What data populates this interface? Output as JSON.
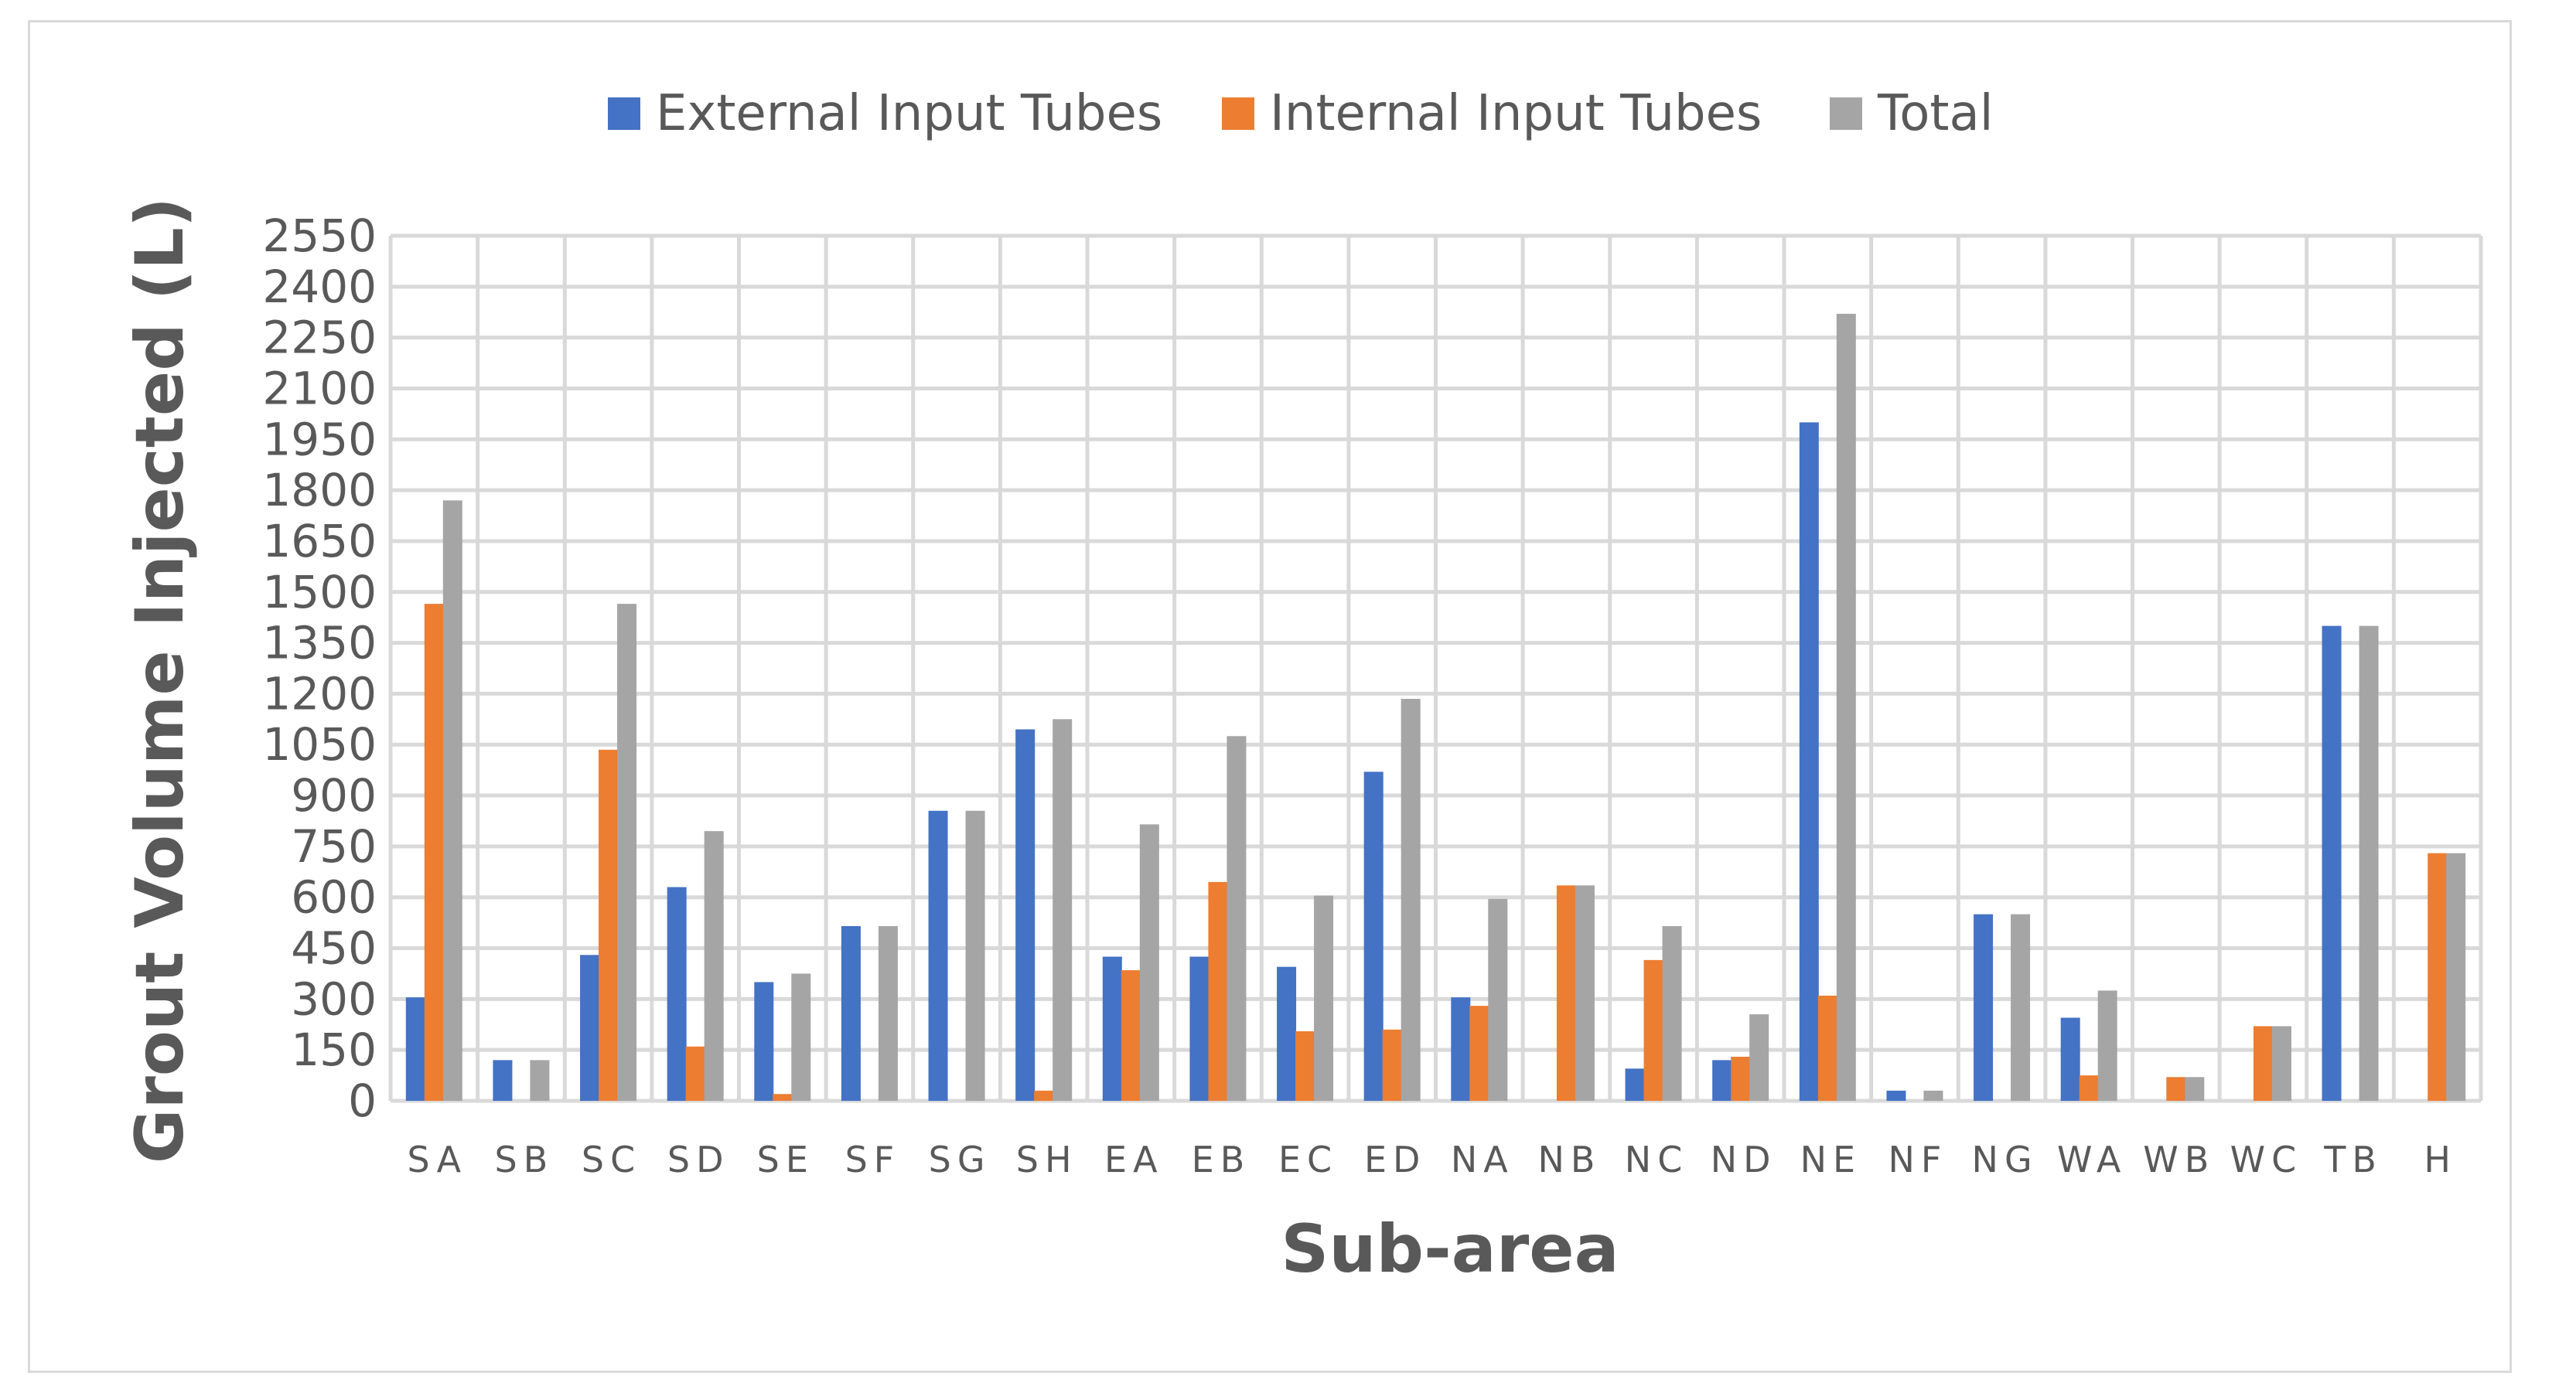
{
  "chart_data": {
    "type": "bar",
    "title": "",
    "xlabel": "Sub-area",
    "ylabel": "Grout Volume Injected (L)",
    "ylim": [
      0,
      2550
    ],
    "yticks": [
      0,
      150,
      300,
      450,
      600,
      750,
      900,
      1050,
      1200,
      1350,
      1500,
      1650,
      1800,
      1950,
      2100,
      2250,
      2400,
      2550
    ],
    "grid": true,
    "legend_position": "top",
    "categories": [
      "SA",
      "SB",
      "SC",
      "SD",
      "SE",
      "SF",
      "SG",
      "SH",
      "EA",
      "EB",
      "EC",
      "ED",
      "NA",
      "NB",
      "NC",
      "ND",
      "NE",
      "NF",
      "NG",
      "WA",
      "WB",
      "WC",
      "TB",
      "H"
    ],
    "series": [
      {
        "name": "External Input Tubes",
        "color": "#4472c4",
        "values": [
          305,
          120,
          430,
          630,
          350,
          515,
          855,
          1095,
          425,
          425,
          395,
          970,
          305,
          0,
          95,
          120,
          2000,
          30,
          550,
          245,
          0,
          0,
          1400,
          0
        ]
      },
      {
        "name": "Internal Input Tubes",
        "color": "#ed7d31",
        "values": [
          1465,
          0,
          1035,
          160,
          20,
          0,
          0,
          30,
          385,
          645,
          205,
          210,
          280,
          635,
          415,
          130,
          310,
          0,
          0,
          75,
          70,
          220,
          0,
          730
        ]
      },
      {
        "name": "Total",
        "color": "#a5a5a5",
        "values": [
          1770,
          120,
          1465,
          795,
          375,
          515,
          855,
          1125,
          815,
          1075,
          605,
          1185,
          595,
          635,
          515,
          255,
          2320,
          30,
          550,
          325,
          70,
          220,
          1400,
          730
        ]
      }
    ]
  }
}
